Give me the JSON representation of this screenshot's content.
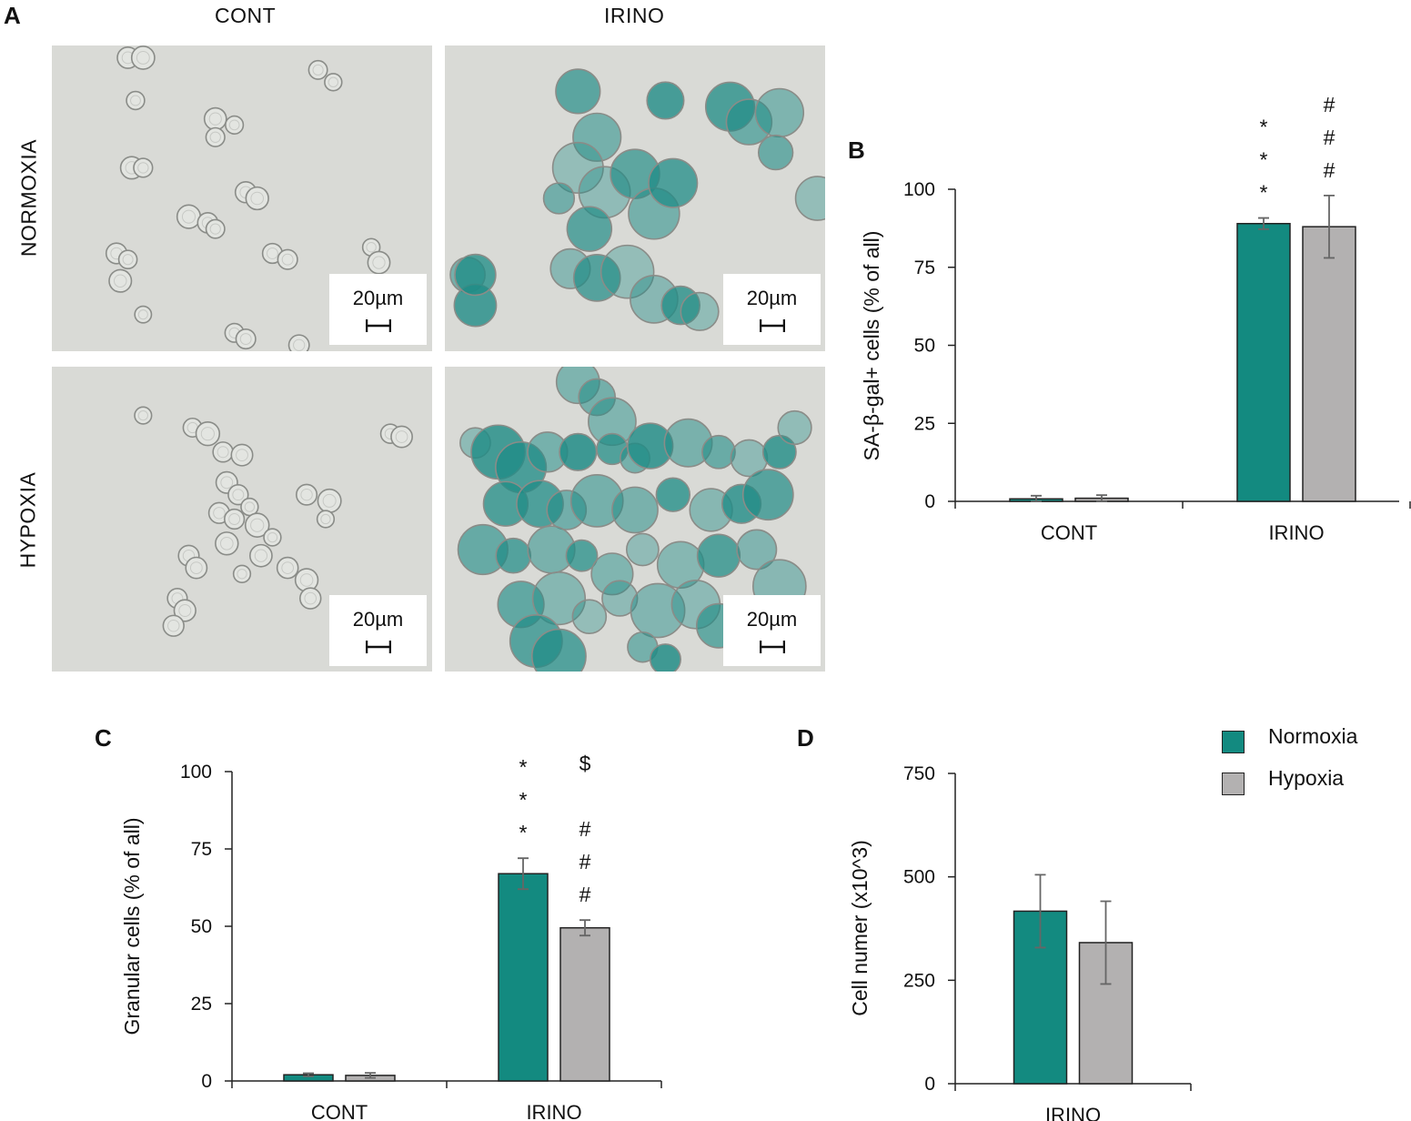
{
  "panels": {
    "a": "A",
    "b": "B",
    "c": "C",
    "d": "D"
  },
  "micrographs": {
    "col_labels": [
      "CONT",
      "IRINO"
    ],
    "row_labels": [
      "NORMOXIA",
      "HYPOXIA"
    ],
    "scale_bar_label": "20µm",
    "colors": {
      "background": "#d9dad6",
      "stain": "#1f8c86",
      "cell_edge": "#8a8c88"
    }
  },
  "legend": [
    {
      "label": "Normoxia",
      "color": "#138a80"
    },
    {
      "label": "Hypoxia",
      "color": "#b3b1b1"
    }
  ],
  "chart_data": [
    {
      "id": "B",
      "type": "bar",
      "categories": [
        "CONT",
        "IRINO"
      ],
      "ylabel": "SA-β-gal+ cells (% of all)",
      "ylim": [
        0,
        100
      ],
      "yticks": [
        "0",
        "25",
        "50",
        "75",
        "100"
      ],
      "series": [
        {
          "name": "Normoxia",
          "color": "#138a80",
          "values": [
            0.8,
            89.0
          ],
          "errors": [
            1.0,
            1.8
          ]
        },
        {
          "name": "Hypoxia",
          "color": "#b3b1b1",
          "values": [
            1.0,
            88.0
          ],
          "errors": [
            1.0,
            10.0
          ]
        }
      ],
      "annotations": [
        {
          "category": "IRINO",
          "series": 0,
          "lines": [
            "*",
            "*",
            "*"
          ]
        },
        {
          "category": "IRINO",
          "series": 1,
          "lines": [
            "#",
            "#",
            "#"
          ]
        }
      ]
    },
    {
      "id": "C",
      "type": "bar",
      "categories": [
        "CONT",
        "IRINO"
      ],
      "ylabel": "Granular cells  (% of all)",
      "ylim": [
        0,
        100
      ],
      "yticks": [
        "0",
        "25",
        "50",
        "75",
        "100"
      ],
      "series": [
        {
          "name": "Normoxia",
          "color": "#138a80",
          "values": [
            2.0,
            67.0
          ],
          "errors": [
            0.5,
            5.0
          ]
        },
        {
          "name": "Hypoxia",
          "color": "#b3b1b1",
          "values": [
            1.8,
            49.5
          ],
          "errors": [
            0.8,
            2.5
          ]
        }
      ],
      "annotations": [
        {
          "category": "IRINO",
          "series": 0,
          "lines": [
            "*",
            "*",
            "*"
          ]
        },
        {
          "category": "IRINO",
          "series": 1,
          "lines": [
            "$",
            "",
            "#",
            "#",
            "#"
          ]
        }
      ]
    },
    {
      "id": "D",
      "type": "bar",
      "categories": [
        "IRINO"
      ],
      "ylabel": "Cell numer (x10^3)",
      "ylim": [
        0,
        750
      ],
      "yticks": [
        "0",
        "250",
        "500",
        "750"
      ],
      "series": [
        {
          "name": "Normoxia",
          "color": "#138a80",
          "values": [
            417
          ],
          "errors": [
            88
          ]
        },
        {
          "name": "Hypoxia",
          "color": "#b3b1b1",
          "values": [
            341
          ],
          "errors": [
            100
          ]
        }
      ],
      "annotations": []
    }
  ]
}
